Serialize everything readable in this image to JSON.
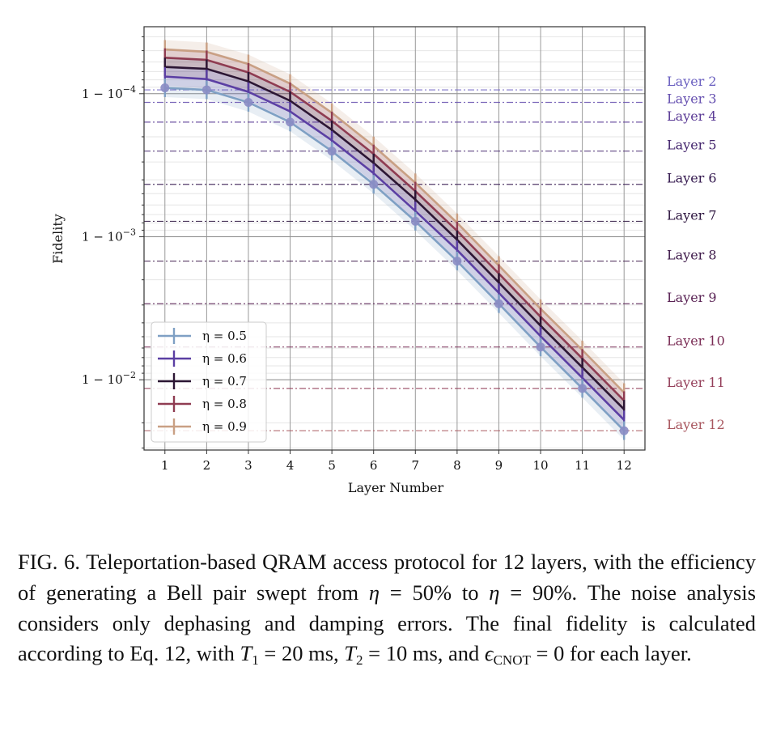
{
  "chart_data": {
    "type": "line",
    "xlabel": "Layer Number",
    "ylabel": "Fidelity",
    "x": [
      1,
      2,
      3,
      4,
      5,
      6,
      7,
      8,
      9,
      10,
      11,
      12
    ],
    "xlim": [
      0.5,
      12.5
    ],
    "x_tick_labels": [
      "1",
      "2",
      "3",
      "4",
      "5",
      "6",
      "7",
      "8",
      "9",
      "10",
      "11",
      "12"
    ],
    "y_scale": "log of (1 - fidelity), inverted (fidelity increases upward)",
    "y_infidelity_lim": [
      3.4e-05,
      0.031
    ],
    "y_ticks": [
      {
        "value": 0.0001,
        "base": "1 − 10",
        "exp": "−4"
      },
      {
        "value": 0.001,
        "base": "1 − 10",
        "exp": "−3"
      },
      {
        "value": 0.01,
        "base": "1 − 10",
        "exp": "−2"
      }
    ],
    "grid": true,
    "legend_placement": "lower-left",
    "series": [
      {
        "name": "η = 0.5",
        "eta": "0.5",
        "color": "#7fa0c4",
        "markers": true,
        "infidelity": [
          9.1e-05,
          9.4e-05,
          0.000115,
          0.000158,
          0.000252,
          0.00043,
          0.00078,
          0.00148,
          0.00294,
          0.0059,
          0.0115,
          0.0227
        ]
      },
      {
        "name": "η = 0.6",
        "eta": "0.6",
        "color": "#5b3fa3",
        "markers": false,
        "infidelity": [
          7.6e-05,
          7.9e-05,
          9.7e-05,
          0.000133,
          0.000212,
          0.00036,
          0.00066,
          0.00124,
          0.00247,
          0.00496,
          0.0097,
          0.0191
        ]
      },
      {
        "name": "η = 0.7",
        "eta": "0.7",
        "color": "#2c1634",
        "markers": false,
        "infidelity": [
          6.5e-05,
          6.7e-05,
          8.2e-05,
          0.000112,
          0.000179,
          0.000305,
          0.00055,
          0.00105,
          0.00209,
          0.00419,
          0.0082,
          0.0161
        ]
      },
      {
        "name": "η = 0.8",
        "eta": "0.8",
        "color": "#8f3c52",
        "markers": false,
        "infidelity": [
          5.6e-05,
          5.8e-05,
          7.1e-05,
          9.7e-05,
          0.000155,
          0.000264,
          0.00048,
          0.00091,
          0.00181,
          0.00363,
          0.0071,
          0.014
        ]
      },
      {
        "name": "η = 0.9",
        "eta": "0.9",
        "color": "#c9a084",
        "markers": false,
        "infidelity": [
          4.9e-05,
          5.1e-05,
          6.2e-05,
          8.5e-05,
          0.000136,
          0.000232,
          0.00042,
          0.0008,
          0.00159,
          0.00319,
          0.0062,
          0.0123
        ]
      }
    ],
    "reference_lines": [
      {
        "label": "Layer 2",
        "infidelity": 9.4e-05,
        "color": "#6a5fc0"
      },
      {
        "label": "Layer 3",
        "infidelity": 0.000115,
        "color": "#6650b0"
      },
      {
        "label": "Layer 4",
        "infidelity": 0.000158,
        "color": "#5a3a95"
      },
      {
        "label": "Layer 5",
        "infidelity": 0.000252,
        "color": "#45276e"
      },
      {
        "label": "Layer 6",
        "infidelity": 0.00043,
        "color": "#34194f"
      },
      {
        "label": "Layer 7",
        "infidelity": 0.00078,
        "color": "#2e1640"
      },
      {
        "label": "Layer 8",
        "infidelity": 0.00148,
        "color": "#3e1a4a"
      },
      {
        "label": "Layer 9",
        "infidelity": 0.00294,
        "color": "#5a2355"
      },
      {
        "label": "Layer 10",
        "infidelity": 0.0059,
        "color": "#7a2c55"
      },
      {
        "label": "Layer 11",
        "infidelity": 0.0115,
        "color": "#943f5a"
      },
      {
        "label": "Layer 12",
        "infidelity": 0.0227,
        "color": "#a8565e"
      }
    ]
  },
  "caption": {
    "segments": [
      {
        "t": "FIG. 6.  Teleportation-based QRAM access protocol for 12 layers, with the efficiency of generating a Bell pair swept from "
      },
      {
        "t": "η",
        "i": true
      },
      {
        "t": " = 50% to "
      },
      {
        "t": "η",
        "i": true
      },
      {
        "t": " = 90%.  The noise analysis considers only dephasing and damping errors. The final fidelity is calculated according to Eq. 12, with "
      },
      {
        "t": "T",
        "i": true
      },
      {
        "t": "1",
        "sub": true
      },
      {
        "t": " = 20 ms, "
      },
      {
        "t": "T",
        "i": true
      },
      {
        "t": "2",
        "sub": true
      },
      {
        "t": " = 10 ms, and "
      },
      {
        "t": "ϵ",
        "i": true
      },
      {
        "t": "CNOT",
        "sub": true
      },
      {
        "t": " = 0 for each layer."
      }
    ]
  }
}
